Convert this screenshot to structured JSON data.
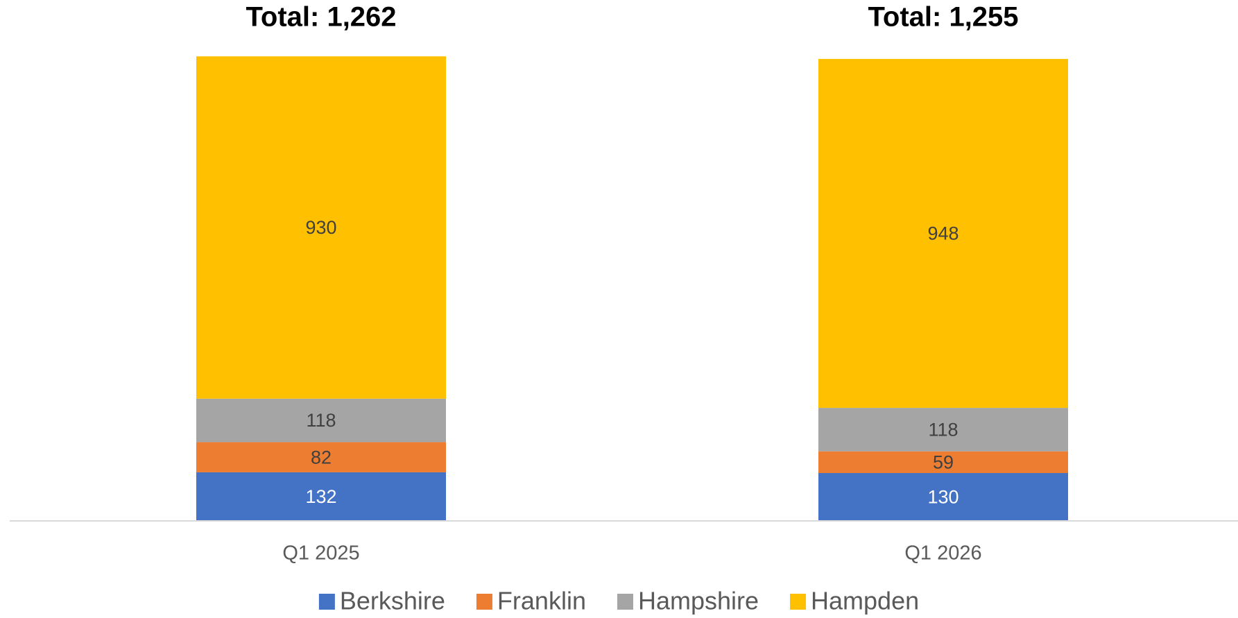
{
  "chart_data": {
    "type": "stacked_bar",
    "annotations": [
      "Total: 1,262",
      "Total: 1,255"
    ],
    "categories": [
      "Q1 2025",
      "Q1 2026"
    ],
    "series": [
      {
        "name": "Berkshire",
        "color": "#4472c4",
        "values": [
          132,
          130
        ]
      },
      {
        "name": "Franklin",
        "color": "#ed7d31",
        "values": [
          82,
          59
        ]
      },
      {
        "name": "Hampshire",
        "color": "#a5a5a5",
        "values": [
          118,
          118
        ]
      },
      {
        "name": "Hampden",
        "color": "#ffc000",
        "values": [
          930,
          948
        ]
      }
    ],
    "ylim": [
      0,
      1400
    ],
    "legend": "bottom"
  }
}
